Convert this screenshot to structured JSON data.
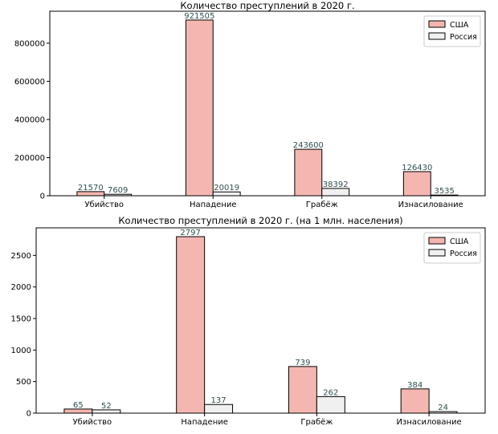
{
  "colors": {
    "usa": "#f4b6b0",
    "russia": "#f0f0f0",
    "edge": "#000000",
    "value_label": "#2f4f4f"
  },
  "chart_data": [
    {
      "type": "bar",
      "title": "Количество преступлений в 2020 г.",
      "xlabel": "",
      "ylabel": "",
      "categories": [
        "Убийство",
        "Нападение",
        "Грабёж",
        "Изнасилование"
      ],
      "series": [
        {
          "name": "США",
          "values": [
            21570,
            921505,
            243600,
            126430
          ]
        },
        {
          "name": "Россия",
          "values": [
            7609,
            20019,
            38392,
            3535
          ]
        }
      ],
      "ylim": [
        0,
        967580
      ],
      "yticks": [
        0,
        200000,
        400000,
        600000,
        800000
      ],
      "ytick_labels": [
        "0",
        "200000",
        "400000",
        "600000",
        "800000"
      ],
      "value_labels": [
        [
          "21570",
          "921505",
          "243600",
          "126430"
        ],
        [
          "7609",
          "20019",
          "38392",
          "3535"
        ]
      ],
      "legend": "top-right",
      "grid": false
    },
    {
      "type": "bar",
      "title": "Количество преступлений в 2020 г. (на 1 млн. населения)",
      "xlabel": "",
      "ylabel": "",
      "categories": [
        "Убийство",
        "Нападение",
        "Грабёж",
        "Изнасилование"
      ],
      "series": [
        {
          "name": "США",
          "values": [
            65,
            2797,
            739,
            384
          ]
        },
        {
          "name": "Россия",
          "values": [
            52,
            137,
            262,
            24
          ]
        }
      ],
      "ylim": [
        0,
        2937
      ],
      "yticks": [
        0,
        500,
        1000,
        1500,
        2000,
        2500
      ],
      "ytick_labels": [
        "0",
        "500",
        "1000",
        "1500",
        "2000",
        "2500"
      ],
      "value_labels": [
        [
          "65",
          "2797",
          "739",
          "384"
        ],
        [
          "52",
          "137",
          "262",
          "24"
        ]
      ],
      "legend": "top-right",
      "grid": false
    }
  ]
}
